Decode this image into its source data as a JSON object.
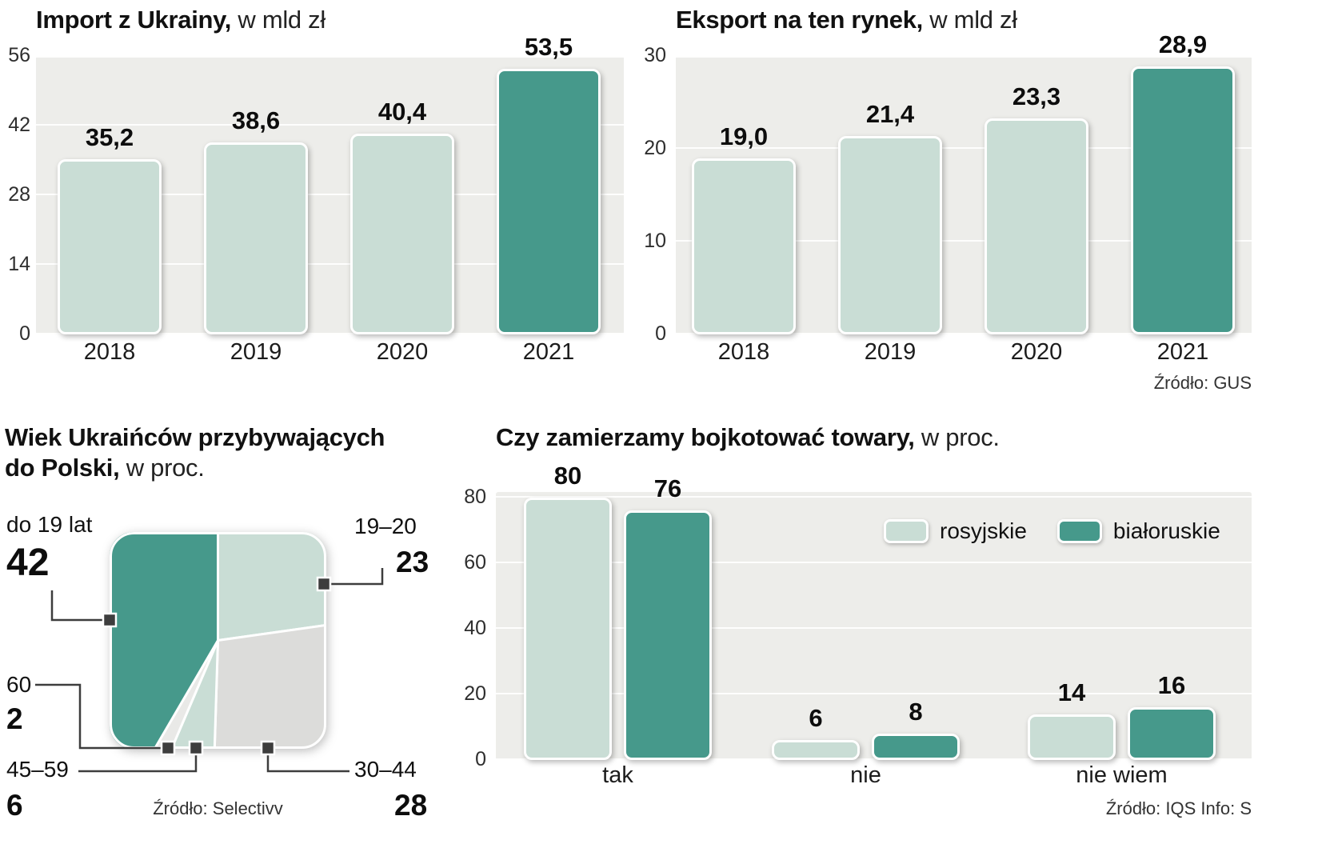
{
  "colors": {
    "light_series": "#c9ddd5",
    "dark_series": "#46998b",
    "gray_slice": "#dcdcda",
    "pale_slice": "#e9e9e7",
    "plot_bg": "#ededea",
    "marker": "#3d3d3d"
  },
  "chart_data": [
    {
      "id": "import",
      "type": "bar",
      "title_bold": "Import z Ukrainy,",
      "title_normal": " w mld zł",
      "categories": [
        "2018",
        "2019",
        "2020",
        "2021"
      ],
      "values": [
        35.2,
        38.6,
        40.4,
        53.5
      ],
      "value_labels": [
        "35,2",
        "38,6",
        "40,4",
        "53,5"
      ],
      "highlight_index": 3,
      "ylim": [
        0,
        56
      ],
      "yticks": [
        0,
        14,
        28,
        42,
        56
      ]
    },
    {
      "id": "eksport",
      "type": "bar",
      "title_bold": "Eksport na ten rynek,",
      "title_normal": " w mld zł",
      "categories": [
        "2018",
        "2019",
        "2020",
        "2021"
      ],
      "values": [
        19.0,
        21.4,
        23.3,
        28.9
      ],
      "value_labels": [
        "19,0",
        "21,4",
        "23,3",
        "28,9"
      ],
      "highlight_index": 3,
      "ylim": [
        0,
        30
      ],
      "yticks": [
        0,
        10,
        20,
        30
      ],
      "source": "Źródło: GUS"
    },
    {
      "id": "wiek",
      "type": "pie",
      "title_bold": "Wiek Ukraińców przybywających do Polski,",
      "title_normal": " w proc.",
      "slices": [
        {
          "label": "19–20",
          "value": 23,
          "color_key": "light_series"
        },
        {
          "label": "30–44",
          "value": 28,
          "color_key": "gray_slice"
        },
        {
          "label": "45–59",
          "value": 6,
          "color_key": "light_series"
        },
        {
          "label": "60",
          "value": 2,
          "color_key": "pale_slice"
        },
        {
          "label": "do 19 lat",
          "value": 42,
          "color_key": "dark_series"
        }
      ],
      "source": "Źródło: Selectivv"
    },
    {
      "id": "bojkot",
      "type": "grouped-bar",
      "title_bold": "Czy zamierzamy bojkotować towary,",
      "title_normal": " w proc.",
      "categories": [
        "tak",
        "nie",
        "nie wiem"
      ],
      "series": [
        {
          "name": "rosyjskie",
          "values": [
            80,
            6,
            14
          ],
          "color_key": "light_series"
        },
        {
          "name": "białoruskie",
          "values": [
            76,
            8,
            16
          ],
          "color_key": "dark_series"
        }
      ],
      "ylim": [
        0,
        80
      ],
      "yticks": [
        0,
        20,
        40,
        60,
        80
      ],
      "source": "Źródło: IQS  Info: S"
    }
  ]
}
